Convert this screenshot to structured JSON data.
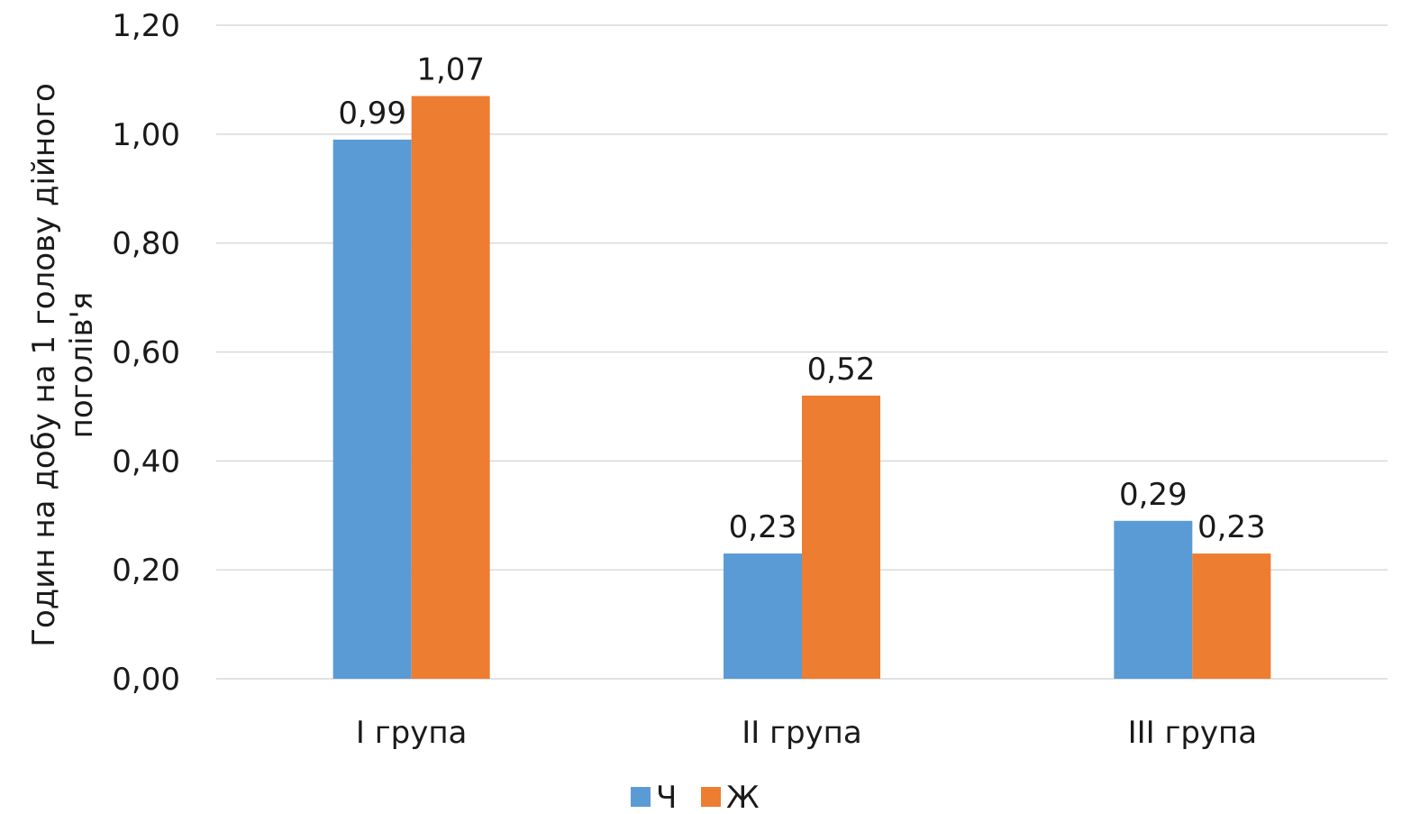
{
  "chart_data": {
    "type": "bar",
    "categories": [
      "I група",
      "II група",
      "III група"
    ],
    "series": [
      {
        "name": "Ч",
        "color": "#5b9bd5",
        "values": [
          0.99,
          0.23,
          0.29
        ]
      },
      {
        "name": "Ж",
        "color": "#ed7d31",
        "values": [
          1.07,
          0.52,
          0.23
        ]
      }
    ],
    "data_labels": [
      [
        "0,99",
        "0,23",
        "0,29"
      ],
      [
        "1,07",
        "0,52",
        "0,23"
      ]
    ],
    "ylabel_lines": [
      "Годин на добу на 1 голову дійного",
      "поголів'я"
    ],
    "ylim": [
      0,
      1.2
    ],
    "yticks": [
      0,
      0.2,
      0.4,
      0.6,
      0.8,
      1.0,
      1.2
    ],
    "ytick_labels": [
      "0,00",
      "0,20",
      "0,40",
      "0,60",
      "0,80",
      "1,00",
      "1,20"
    ],
    "grid": true,
    "legend_position": "bottom-center"
  }
}
